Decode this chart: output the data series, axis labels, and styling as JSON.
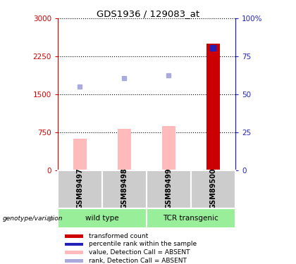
{
  "title": "GDS1936 / 129083_at",
  "samples": [
    "GSM89497",
    "GSM89498",
    "GSM89499",
    "GSM89500"
  ],
  "bar_values": [
    620,
    820,
    870,
    2500
  ],
  "bar_colors": [
    "#ffbbbb",
    "#ffbbbb",
    "#ffbbbb",
    "#cc0000"
  ],
  "rank_markers": [
    1650,
    1820,
    1870,
    2420
  ],
  "rank_marker_colors": [
    "#aaaadd",
    "#aaaadd",
    "#aaaadd",
    "#2222bb"
  ],
  "rank_marker_sizes": [
    5,
    5,
    5,
    6
  ],
  "ylim_left": [
    0,
    3000
  ],
  "ylim_right": [
    0,
    100
  ],
  "yticks_left": [
    0,
    750,
    1500,
    2250,
    3000
  ],
  "ytick_labels_left": [
    "0",
    "750",
    "1500",
    "2250",
    "3000"
  ],
  "yticks_right": [
    0,
    25,
    50,
    75,
    100
  ],
  "ytick_labels_right": [
    "0",
    "25",
    "50",
    "75",
    "100%"
  ],
  "left_axis_color": "#cc0000",
  "right_axis_color": "#2222bb",
  "bar_width": 0.3,
  "legend_items": [
    {
      "label": "transformed count",
      "color": "#cc0000"
    },
    {
      "label": "percentile rank within the sample",
      "color": "#2222bb"
    },
    {
      "label": "value, Detection Call = ABSENT",
      "color": "#ffbbbb"
    },
    {
      "label": "rank, Detection Call = ABSENT",
      "color": "#aaaadd"
    }
  ],
  "genotype_label": "genotype/variation",
  "group_label_1": "wild type",
  "group_label_2": "TCR transgenic",
  "group_color": "#99ee99",
  "sample_box_color": "#cccccc",
  "plot_bg": "#ffffff",
  "title_fontsize": 9.5
}
